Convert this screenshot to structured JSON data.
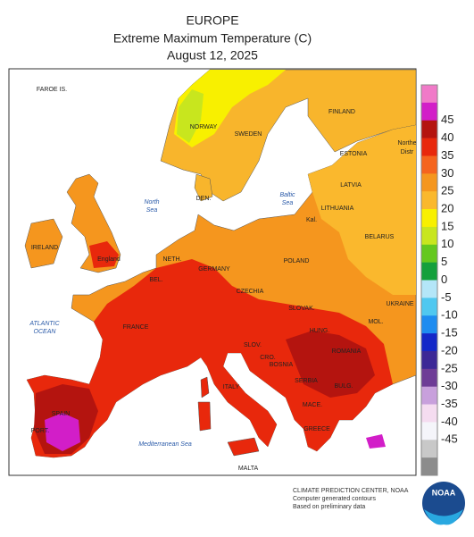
{
  "title": "EUROPE",
  "subtitle": "Extreme Maximum Temperature (C)",
  "date": "August 12, 2025",
  "legend": {
    "labels": [
      45,
      40,
      35,
      30,
      25,
      20,
      15,
      10,
      5,
      0,
      -5,
      -10,
      -15,
      -20,
      -25,
      -30,
      -35,
      -40,
      -45
    ],
    "colors": [
      "#f07ac8",
      "#d21ec8",
      "#b4140f",
      "#e8280c",
      "#f5641e",
      "#f5961e",
      "#fab82d",
      "#f8f000",
      "#c8e61e",
      "#64c81e",
      "#14a03c",
      "#b4e6f8",
      "#50c8f0",
      "#1e8cf0",
      "#1428c8",
      "#3c2896",
      "#6e3c96",
      "#c8a0dc",
      "#f5dcf0",
      "#f5f5fa",
      "#c8c8c8",
      "#8c8c8c"
    ]
  },
  "places": [
    "FAROE IS.",
    "NORWAY",
    "SWEDEN",
    "FINLAND",
    "ESTONIA",
    "LATVIA",
    "LITHUANIA",
    "BELARUS",
    "Northe",
    "Distr",
    "DEN.",
    "Kal.",
    "IRELAND",
    "England",
    "NETH.",
    "GERMANY",
    "POLAND",
    "BEL.",
    "CZECHIA",
    "SLOVAK.",
    "UKRAINE",
    "MOL.",
    "HUNG.",
    "ROMANIA",
    "FRANCE",
    "SLOV.",
    "CRO.",
    "BOSNIA",
    "SERBIA",
    "ITALY",
    "BULG.",
    "MACE.",
    "SPAIN",
    "GREECE",
    "PORT.",
    "MALTA"
  ],
  "seas": [
    "North",
    "Sea",
    "Baltic",
    "Sea",
    "ATLANTIC",
    "OCEAN",
    "Mediterranean Sea"
  ],
  "credits": [
    "CLIMATE PREDICTION CENTER, NOAA",
    "Computer generated contours",
    "Based on preliminary data"
  ],
  "logo": "NOAA"
}
